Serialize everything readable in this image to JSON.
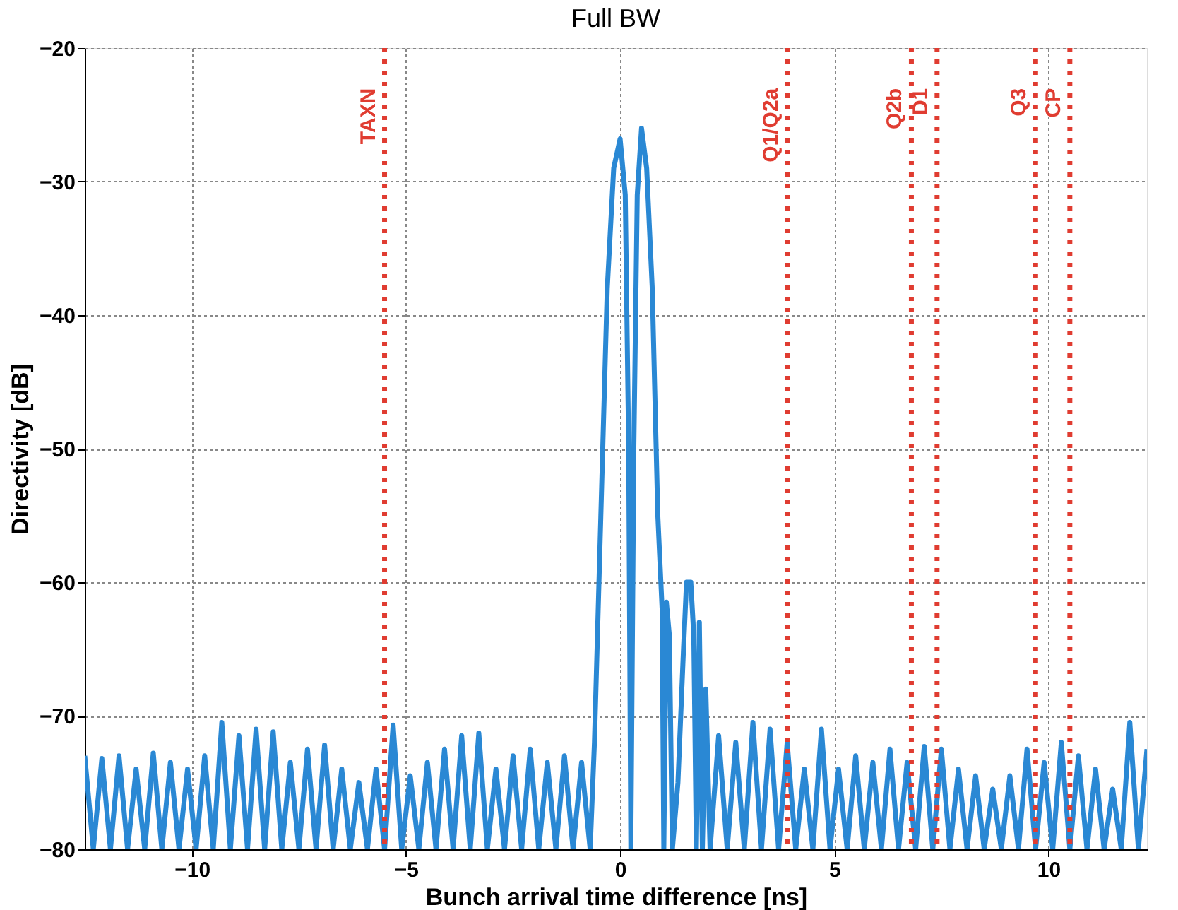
{
  "chart_data": {
    "type": "line",
    "title": "Full BW",
    "xlabel": "Bunch arrival time difference [ns]",
    "ylabel": "Directivity [dB]",
    "xlim": [
      -12.5,
      12.3
    ],
    "ylim": [
      -80,
      -20
    ],
    "xticks": [
      -10,
      -5,
      0,
      5,
      10
    ],
    "yticks": [
      -80,
      -70,
      -60,
      -50,
      -40,
      -30,
      -20
    ],
    "grid": true,
    "marker": "none",
    "line_style": "solid",
    "series": [
      {
        "color": "#2a88d4",
        "x": [
          -12.5,
          -12.3,
          -12.1,
          -11.9,
          -11.7,
          -11.5,
          -11.3,
          -11.1,
          -10.9,
          -10.7,
          -10.5,
          -10.3,
          -10.1,
          -9.9,
          -9.7,
          -9.5,
          -9.3,
          -9.1,
          -8.9,
          -8.7,
          -8.5,
          -8.3,
          -8.1,
          -7.9,
          -7.7,
          -7.5,
          -7.3,
          -7.1,
          -6.9,
          -6.7,
          -6.5,
          -6.3,
          -6.1,
          -5.9,
          -5.7,
          -5.5,
          -5.3,
          -5.1,
          -4.9,
          -4.7,
          -4.5,
          -4.3,
          -4.1,
          -3.9,
          -3.7,
          -3.5,
          -3.3,
          -3.1,
          -2.9,
          -2.7,
          -2.5,
          -2.3,
          -2.1,
          -1.9,
          -1.7,
          -1.5,
          -1.3,
          -1.1,
          -0.9,
          -0.7,
          -0.6,
          -0.45,
          -0.3,
          -0.15,
          0,
          0.12,
          0.2,
          0.25,
          0.32,
          0.4,
          0.5,
          0.62,
          0.75,
          0.88,
          0.98,
          1.02,
          1.08,
          1.15,
          1.22,
          1.35,
          1.48,
          1.55,
          1.65,
          1.72,
          1.78,
          1.85,
          1.92,
          2.0,
          2.1,
          2.3,
          2.5,
          2.7,
          2.9,
          3.1,
          3.3,
          3.5,
          3.7,
          3.9,
          4.1,
          4.3,
          4.5,
          4.7,
          4.9,
          5.1,
          5.3,
          5.5,
          5.7,
          5.9,
          6.1,
          6.3,
          6.5,
          6.7,
          6.9,
          7.1,
          7.3,
          7.5,
          7.7,
          7.9,
          8.1,
          8.3,
          8.5,
          8.7,
          8.9,
          9.1,
          9.3,
          9.5,
          9.7,
          9.9,
          10.1,
          10.3,
          10.5,
          10.7,
          10.9,
          11.1,
          11.3,
          11.5,
          11.7,
          11.9,
          12.1,
          12.3
        ],
        "values": [
          -73,
          -80,
          -73.2,
          -80,
          -73,
          -80,
          -74,
          -80,
          -72.8,
          -80,
          -73.5,
          -80,
          -74,
          -80,
          -73,
          -80,
          -70.5,
          -80,
          -71.5,
          -80,
          -71,
          -80,
          -71.2,
          -80,
          -73.5,
          -80,
          -72.5,
          -80,
          -72.2,
          -80,
          -74,
          -80,
          -75,
          -80,
          -74,
          -80,
          -70.7,
          -80,
          -74.5,
          -80,
          -73.5,
          -80,
          -72.5,
          -80,
          -71.5,
          -80,
          -71.3,
          -80,
          -74,
          -80,
          -73,
          -80,
          -72.5,
          -80,
          -73.5,
          -80,
          -73,
          -80,
          -73.5,
          -80,
          -72,
          -55,
          -38,
          -29,
          -26.8,
          -31,
          -50,
          -80,
          -50,
          -31,
          -26,
          -29,
          -38,
          -55,
          -62,
          -80,
          -61.5,
          -64,
          -80,
          -75,
          -65,
          -60,
          -60,
          -64,
          -80,
          -63,
          -80,
          -68,
          -80,
          -71.5,
          -80,
          -72,
          -80,
          -70.5,
          -80,
          -71,
          -80,
          -72,
          -80,
          -74,
          -80,
          -71,
          -80,
          -74,
          -80,
          -73,
          -80,
          -73.5,
          -80,
          -72.5,
          -80,
          -73.5,
          -80,
          -72.3,
          -80,
          -72.5,
          -80,
          -74,
          -80,
          -74.5,
          -80,
          -75.5,
          -80,
          -74.5,
          -80,
          -72.5,
          -80,
          -73.5,
          -80,
          -72,
          -80,
          -73,
          -80,
          -74,
          -80,
          -75.5,
          -80,
          -70.5,
          -80,
          -72.5
        ]
      }
    ],
    "ref_lines": [
      {
        "axis": "x",
        "value": -5.5,
        "label": "TAXN",
        "color": "#e03c31",
        "line_style": "dotted"
      },
      {
        "axis": "x",
        "value": 3.9,
        "label": "Q1/Q2a",
        "color": "#e03c31",
        "line_style": "dotted"
      },
      {
        "axis": "x",
        "value": 6.8,
        "label": "Q2b",
        "color": "#e03c31",
        "line_style": "dotted"
      },
      {
        "axis": "x",
        "value": 7.4,
        "label": "D1",
        "color": "#e03c31",
        "line_style": "dotted"
      },
      {
        "axis": "x",
        "value": 9.7,
        "label": "Q3",
        "color": "#e03c31",
        "line_style": "dotted"
      },
      {
        "axis": "x",
        "value": 10.5,
        "label": "CP",
        "color": "#e03c31",
        "line_style": "dotted"
      }
    ]
  }
}
